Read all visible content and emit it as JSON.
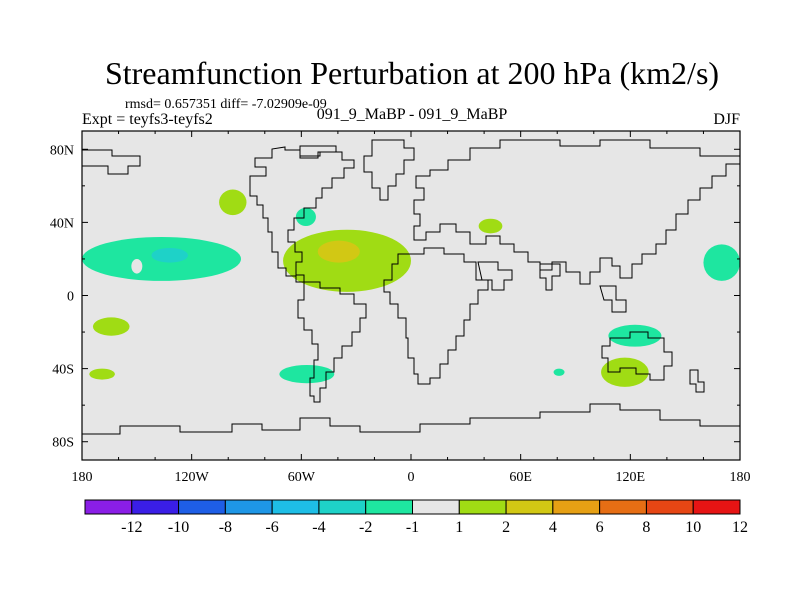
{
  "chart_data": {
    "type": "heatmap",
    "title": "Streamfunction Perturbation at 200 hPa (km2/s)",
    "stats_line": "rmsd= 0.657351 diff= -7.02909e-09",
    "left_label": "Expt = teyfs3-teyfs2",
    "center_label": "091_9_MaBP - 091_9_MaBP",
    "right_label": "DJF",
    "xlim": [
      -180,
      180
    ],
    "ylim": [
      -90,
      90
    ],
    "x_ticks": [
      -180,
      -120,
      -60,
      0,
      60,
      120,
      180
    ],
    "x_tick_labels": [
      "180",
      "120W",
      "60W",
      "0",
      "60E",
      "120E",
      "180"
    ],
    "y_ticks": [
      80,
      40,
      0,
      -40,
      -80
    ],
    "y_tick_labels": [
      "80N",
      "40N",
      "0",
      "40S",
      "80S"
    ],
    "colorbar": {
      "labels": [
        "-12",
        "-10",
        "-8",
        "-6",
        "-4",
        "-2",
        "-1",
        "1",
        "2",
        "4",
        "6",
        "8",
        "10",
        "12"
      ],
      "colors": [
        "#8a1ee6",
        "#3a1ee6",
        "#1e5ee6",
        "#1e96e6",
        "#1ebee6",
        "#1ed2c8",
        "#1ee6a0",
        "#e6e6e6",
        "#a0dc14",
        "#d2c814",
        "#e6a014",
        "#e66e14",
        "#e64614",
        "#e61414"
      ]
    },
    "regions": [
      {
        "label": "North Pacific negative anomaly",
        "lon": [
          -180,
          -93
        ],
        "lat": [
          8,
          32
        ],
        "value": -1.5,
        "color": "#1ee6a0"
      },
      {
        "label": "North Pacific core",
        "lon": [
          -142,
          -122
        ],
        "lat": [
          18,
          26
        ],
        "value": -3,
        "color": "#1ed2c8"
      },
      {
        "label": "North Pacific trough gap",
        "lon": [
          -153,
          -147
        ],
        "lat": [
          12,
          20
        ],
        "value": 0,
        "color": "#e6e6e6"
      },
      {
        "label": "Far west Pacific",
        "lon": [
          -174,
          -154
        ],
        "lat": [
          -22,
          -12
        ],
        "value": 1.5,
        "color": "#a0dc14"
      },
      {
        "label": "Far west Pacific south",
        "lon": [
          -176,
          -162
        ],
        "lat": [
          -46,
          -40
        ],
        "value": 1.5,
        "color": "#a0dc14"
      },
      {
        "label": "North America small",
        "lon": [
          -105,
          -90
        ],
        "lat": [
          44,
          58
        ],
        "value": 1.5,
        "color": "#a0dc14"
      },
      {
        "label": "Atlantic positive anomaly",
        "lon": [
          -70,
          0
        ],
        "lat": [
          2,
          36
        ],
        "value": 2,
        "color": "#a0dc14"
      },
      {
        "label": "Atlantic core",
        "lon": [
          -51,
          -28
        ],
        "lat": [
          18,
          30
        ],
        "value": 3,
        "color": "#d2c814"
      },
      {
        "label": "Atlantic west negative",
        "lon": [
          -63,
          -52
        ],
        "lat": [
          38,
          48
        ],
        "value": -1.5,
        "color": "#1ee6a0"
      },
      {
        "label": "South Atlantic negative",
        "lon": [
          -72,
          -42
        ],
        "lat": [
          -48,
          -38
        ],
        "value": -1.5,
        "color": "#1ee6a0"
      },
      {
        "label": "Central Asia",
        "lon": [
          37,
          50
        ],
        "lat": [
          34,
          42
        ],
        "value": 1.5,
        "color": "#a0dc14"
      },
      {
        "label": "Indian Ocean south",
        "lon": [
          104,
          130
        ],
        "lat": [
          -50,
          -34
        ],
        "value": 1.5,
        "color": "#a0dc14"
      },
      {
        "label": "Australia negative",
        "lon": [
          108,
          137
        ],
        "lat": [
          -28,
          -16
        ],
        "value": -1.5,
        "color": "#1ee6a0"
      },
      {
        "label": "Indian Ocean small",
        "lon": [
          78,
          84
        ],
        "lat": [
          -44,
          -40
        ],
        "value": -1.5,
        "color": "#1ee6a0"
      },
      {
        "label": "East Pacific edge",
        "lon": [
          160,
          180
        ],
        "lat": [
          8,
          28
        ],
        "value": -1.5,
        "color": "#1ee6a0"
      }
    ]
  }
}
